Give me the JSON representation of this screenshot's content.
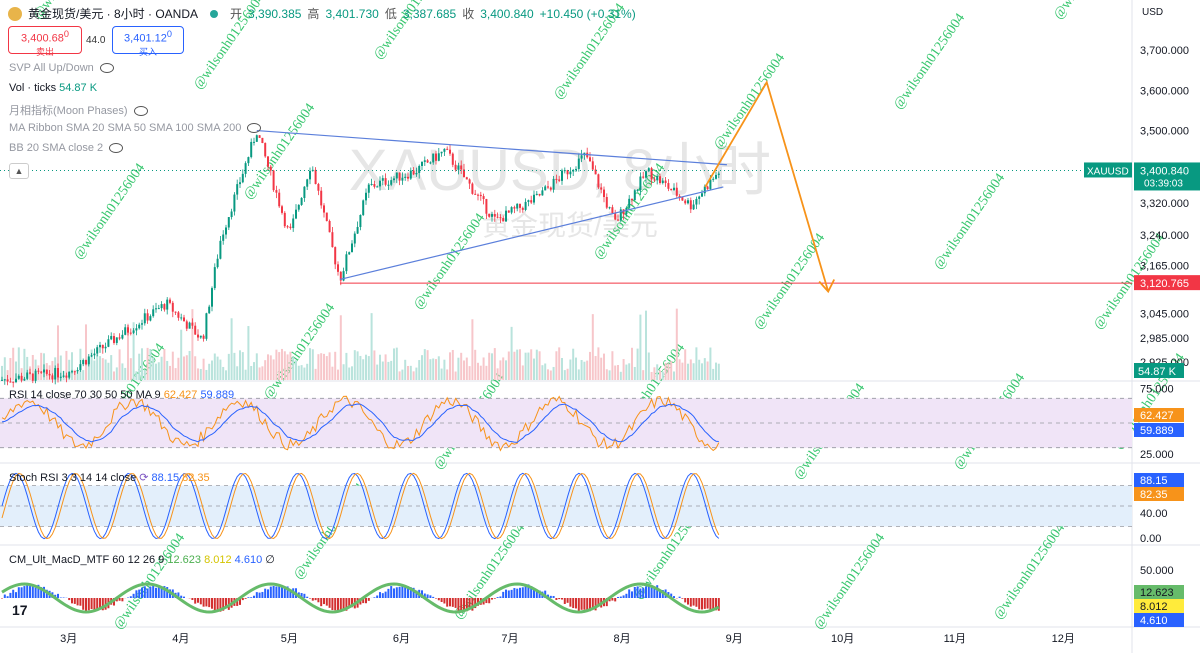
{
  "header": {
    "symbol_title": "黄金现货/美元 · 8小时 · OANDA",
    "open_label": "开",
    "open": "3,390.385",
    "high_label": "高",
    "high": "3,401.730",
    "low_label": "低",
    "low": "3,387.685",
    "close_label": "收",
    "close": "3,400.840",
    "change": "+10.450 (+0.31%)"
  },
  "trade": {
    "sell_price": "3,400.68",
    "sell_sup": "0",
    "sell_label": "卖出",
    "spread": "44.0",
    "buy_price": "3,401.12",
    "buy_sup": "0",
    "buy_label": "买入"
  },
  "indicators": {
    "svp": "SVP All Up/Down",
    "vol": "Vol · ticks",
    "vol_value": "54.87 K",
    "moon": "月相指标(Moon Phases)",
    "ribbon": "MA Ribbon SMA 20 SMA 50 SMA 100 SMA 200",
    "bb": "BB 20 SMA close 2"
  },
  "watermark": {
    "symbol": "XAUUSD, 8小时",
    "name": "黄金现货/美元",
    "user": "@wilsonh01256004"
  },
  "currency": "USD",
  "price_scale": {
    "ticks": [
      "3,700.000",
      "3,600.000",
      "3,500.000",
      "3,320.000",
      "3,240.000",
      "3,165.000",
      "3,045.000",
      "2,985.000",
      "2,925.000"
    ],
    "symbol_tag": "XAUUSD",
    "last_price": "3,400.840",
    "countdown": "03:39:03",
    "support": "3,120.765",
    "vol_tag": "54.87 K"
  },
  "rsi": {
    "label": "RSI 14 close 70 30 50 50 MA 9",
    "v1": "62.427",
    "v2": "59.889",
    "ticks": [
      "75.000",
      "25.000"
    ]
  },
  "stoch": {
    "label": "Stoch RSI 3 3 14 14 close",
    "v1": "88.15",
    "v2": "82.35",
    "ticks": [
      "40.00",
      "0.00"
    ]
  },
  "macd": {
    "label": "CM_Ult_MacD_MTF 60 12 26 9",
    "v1": "12.623",
    "v2": "8.012",
    "v3": "4.610",
    "sym": "∅",
    "ticks": [
      "50.000"
    ]
  },
  "time_axis": [
    "3月",
    "4月",
    "5月",
    "6月",
    "7月",
    "8月",
    "9月",
    "10月",
    "11月",
    "12月"
  ],
  "colors": {
    "up": "#089981",
    "down": "#f23645",
    "trendline": "#5b7fdb",
    "projection": "#f7931a",
    "support": "#f23645",
    "rsi_band": "#f0e4f7",
    "stoch_band": "#e3effb"
  },
  "chart_data": {
    "type": "candlestick",
    "y_range": [
      2880,
      3750
    ],
    "x_axis": [
      "3月",
      "4月",
      "5月",
      "6月",
      "7月",
      "8月",
      "9月",
      "10月",
      "11月",
      "12月"
    ],
    "price_path": [
      {
        "date": "2025-02-10",
        "price": 2880
      },
      {
        "date": "2025-03-01",
        "price": 2900
      },
      {
        "date": "2025-03-15",
        "price": 2990
      },
      {
        "date": "2025-03-28",
        "price": 3070
      },
      {
        "date": "2025-04-07",
        "price": 2980
      },
      {
        "date": "2025-04-12",
        "price": 3230
      },
      {
        "date": "2025-04-22",
        "price": 3500
      },
      {
        "date": "2025-05-01",
        "price": 3240
      },
      {
        "date": "2025-05-07",
        "price": 3420
      },
      {
        "date": "2025-05-15",
        "price": 3130
      },
      {
        "date": "2025-05-23",
        "price": 3360
      },
      {
        "date": "2025-06-05",
        "price": 3400
      },
      {
        "date": "2025-06-13",
        "price": 3450
      },
      {
        "date": "2025-06-27",
        "price": 3275
      },
      {
        "date": "2025-07-08",
        "price": 3330
      },
      {
        "date": "2025-07-22",
        "price": 3440
      },
      {
        "date": "2025-07-30",
        "price": 3270
      },
      {
        "date": "2025-08-08",
        "price": 3400
      },
      {
        "date": "2025-08-20",
        "price": 3315
      },
      {
        "date": "2025-08-28",
        "price": 3400
      }
    ],
    "triangle": {
      "upper": [
        [
          "2025-04-22",
          3500
        ],
        [
          "2025-08-30",
          3415
        ]
      ],
      "lower": [
        [
          "2025-05-15",
          3130
        ],
        [
          "2025-08-29",
          3360
        ]
      ]
    },
    "projection": [
      [
        "2025-08-24",
        3360
      ],
      [
        "2025-09-10",
        3620
      ],
      [
        "2025-09-27",
        3100
      ]
    ],
    "support_level": 3120.765
  }
}
